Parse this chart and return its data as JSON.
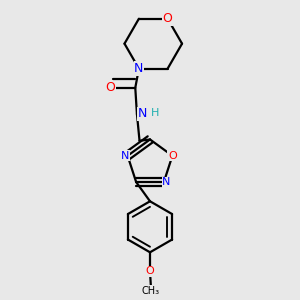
{
  "bg_color": "#e8e8e8",
  "atom_colors": {
    "N": "#0000ff",
    "O": "#ff0000",
    "H": "#20b0b0",
    "C": "#000000"
  },
  "bond_color": "#000000",
  "bond_width": 1.6,
  "font_size_atom": 9,
  "font_size_small": 8
}
